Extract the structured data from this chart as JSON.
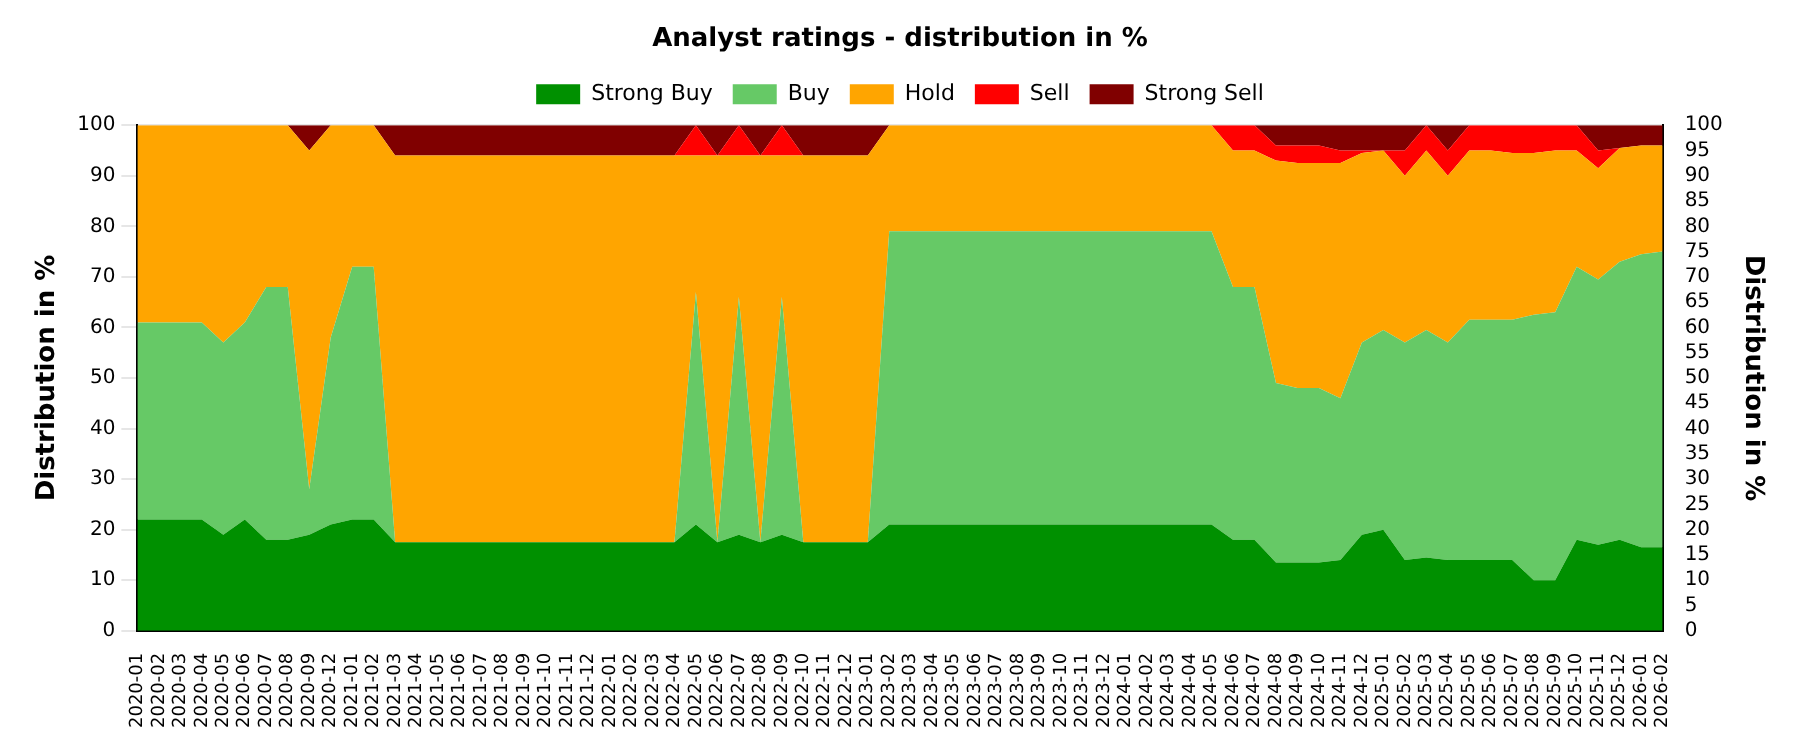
{
  "chart_data": {
    "type": "area",
    "title": "Analyst ratings - distribution in %",
    "ylabel": "Distribution in %",
    "y2label": "Distribution in %",
    "categories": [
      "2020-01",
      "2020-02",
      "2020-03",
      "2020-04",
      "2020-05",
      "2020-06",
      "2020-07",
      "2020-08",
      "2020-09",
      "2020-12",
      "2021-01",
      "2021-02",
      "2021-03",
      "2021-04",
      "2021-05",
      "2021-06",
      "2021-07",
      "2021-08",
      "2021-09",
      "2021-10",
      "2021-11",
      "2021-12",
      "2022-01",
      "2022-02",
      "2022-03",
      "2022-04",
      "2022-05",
      "2022-06",
      "2022-07",
      "2022-08",
      "2022-09",
      "2022-10",
      "2022-11",
      "2022-12",
      "2023-01",
      "2023-02",
      "2023-03",
      "2023-04",
      "2023-05",
      "2023-06",
      "2023-07",
      "2023-08",
      "2023-09",
      "2023-10",
      "2023-11",
      "2023-12",
      "2024-01",
      "2024-02",
      "2024-03",
      "2024-04",
      "2024-05",
      "2024-06",
      "2024-07",
      "2024-08",
      "2024-09",
      "2024-10",
      "2024-11",
      "2024-12",
      "2025-01",
      "2025-02",
      "2025-03",
      "2025-04",
      "2025-05",
      "2025-06",
      "2025-07",
      "2025-08",
      "2025-09",
      "2025-10",
      "2025-11",
      "2025-12",
      "2026-01",
      "2026-02"
    ],
    "stacked": true,
    "ylim": [
      0,
      100
    ],
    "yticks": [
      0,
      10,
      20,
      30,
      40,
      50,
      60,
      70,
      80,
      90,
      100
    ],
    "y2lim": [
      0,
      100
    ],
    "y2ticks": [
      0,
      5,
      10,
      15,
      20,
      25,
      30,
      35,
      40,
      45,
      50,
      55,
      60,
      65,
      70,
      75,
      80,
      85,
      90,
      95,
      100
    ],
    "grid": "y",
    "legend": "top",
    "series": [
      {
        "name": "Strong Buy",
        "color": "#009000",
        "values": [
          22,
          22,
          22,
          22,
          19,
          22,
          18,
          18,
          19,
          21,
          22,
          22,
          17.5,
          17.5,
          17.5,
          17.5,
          17.5,
          17.5,
          17.5,
          17.5,
          17.5,
          17.5,
          17.5,
          17.5,
          17.5,
          17.5,
          21,
          17.5,
          19,
          17.5,
          19,
          17.5,
          17.5,
          17.5,
          17.5,
          21,
          21,
          21,
          21,
          21,
          21,
          21,
          21,
          21,
          21,
          21,
          21,
          21,
          21,
          21,
          21,
          18,
          18,
          13.5,
          13.5,
          13.5,
          14,
          19,
          20,
          14,
          14.5,
          14,
          14,
          14,
          14,
          10,
          10,
          18,
          17,
          18,
          16.5,
          16.5
        ]
      },
      {
        "name": "Buy",
        "color": "#66c966",
        "values": [
          39,
          39,
          39,
          39,
          38,
          39,
          50,
          50,
          9,
          37,
          50,
          50,
          0,
          0,
          0,
          0,
          0,
          0,
          0,
          0,
          0,
          0,
          0,
          0,
          0,
          0,
          46,
          0,
          47,
          0,
          47,
          0,
          0,
          0,
          0,
          58,
          58,
          58,
          58,
          58,
          58,
          58,
          58,
          58,
          58,
          58,
          58,
          58,
          58,
          58,
          58,
          50,
          50,
          35.5,
          34.5,
          34.5,
          32,
          38,
          39.5,
          43,
          45,
          43,
          47.5,
          47.5,
          47.5,
          52.5,
          53,
          54,
          52.5,
          55,
          58,
          58.5
        ]
      },
      {
        "name": "Hold",
        "color": "#ffa500",
        "values": [
          39,
          39,
          39,
          39,
          43,
          39,
          32,
          32,
          67,
          42,
          28,
          28,
          76.5,
          76.5,
          76.5,
          76.5,
          76.5,
          76.5,
          76.5,
          76.5,
          76.5,
          76.5,
          76.5,
          76.5,
          76.5,
          76.5,
          27,
          76.5,
          28,
          76.5,
          28,
          76.5,
          76.5,
          76.5,
          76.5,
          21,
          21,
          21,
          21,
          21,
          21,
          21,
          21,
          21,
          21,
          21,
          21,
          21,
          21,
          21,
          21,
          27,
          27,
          44,
          44.5,
          44.5,
          46.5,
          37.5,
          35.5,
          33,
          35.5,
          33,
          33.5,
          33.5,
          33,
          32,
          32,
          23,
          22,
          22.5,
          21.5,
          21
        ]
      },
      {
        "name": "Sell",
        "color": "#ff0000",
        "values": [
          0,
          0,
          0,
          0,
          0,
          0,
          0,
          0,
          0,
          0,
          0,
          0,
          0,
          0,
          0,
          0,
          0,
          0,
          0,
          0,
          0,
          0,
          0,
          0,
          0,
          0,
          6,
          0,
          6,
          0,
          6,
          0,
          0,
          0,
          0,
          0,
          0,
          0,
          0,
          0,
          0,
          0,
          0,
          0,
          0,
          0,
          0,
          0,
          0,
          0,
          0,
          5,
          5,
          3,
          3.5,
          3.5,
          2.5,
          0.5,
          0,
          5,
          5,
          5,
          5,
          5,
          5.5,
          5.5,
          5,
          5,
          3.5,
          0,
          0,
          0
        ]
      },
      {
        "name": "Strong Sell",
        "color": "#800000",
        "values": [
          0,
          0,
          0,
          0,
          0,
          0,
          0,
          0,
          5,
          0,
          0,
          0,
          6,
          6,
          6,
          6,
          6,
          6,
          6,
          6,
          6,
          6,
          6,
          6,
          6,
          6,
          0,
          6,
          0,
          6,
          0,
          6,
          6,
          6,
          6,
          0,
          0,
          0,
          0,
          0,
          0,
          0,
          0,
          0,
          0,
          0,
          0,
          0,
          0,
          0,
          0,
          0,
          0,
          4,
          4,
          4,
          5,
          5,
          5,
          5,
          0,
          5,
          0,
          0,
          0,
          0,
          0,
          0,
          5,
          4.5,
          4,
          4
        ]
      }
    ]
  }
}
